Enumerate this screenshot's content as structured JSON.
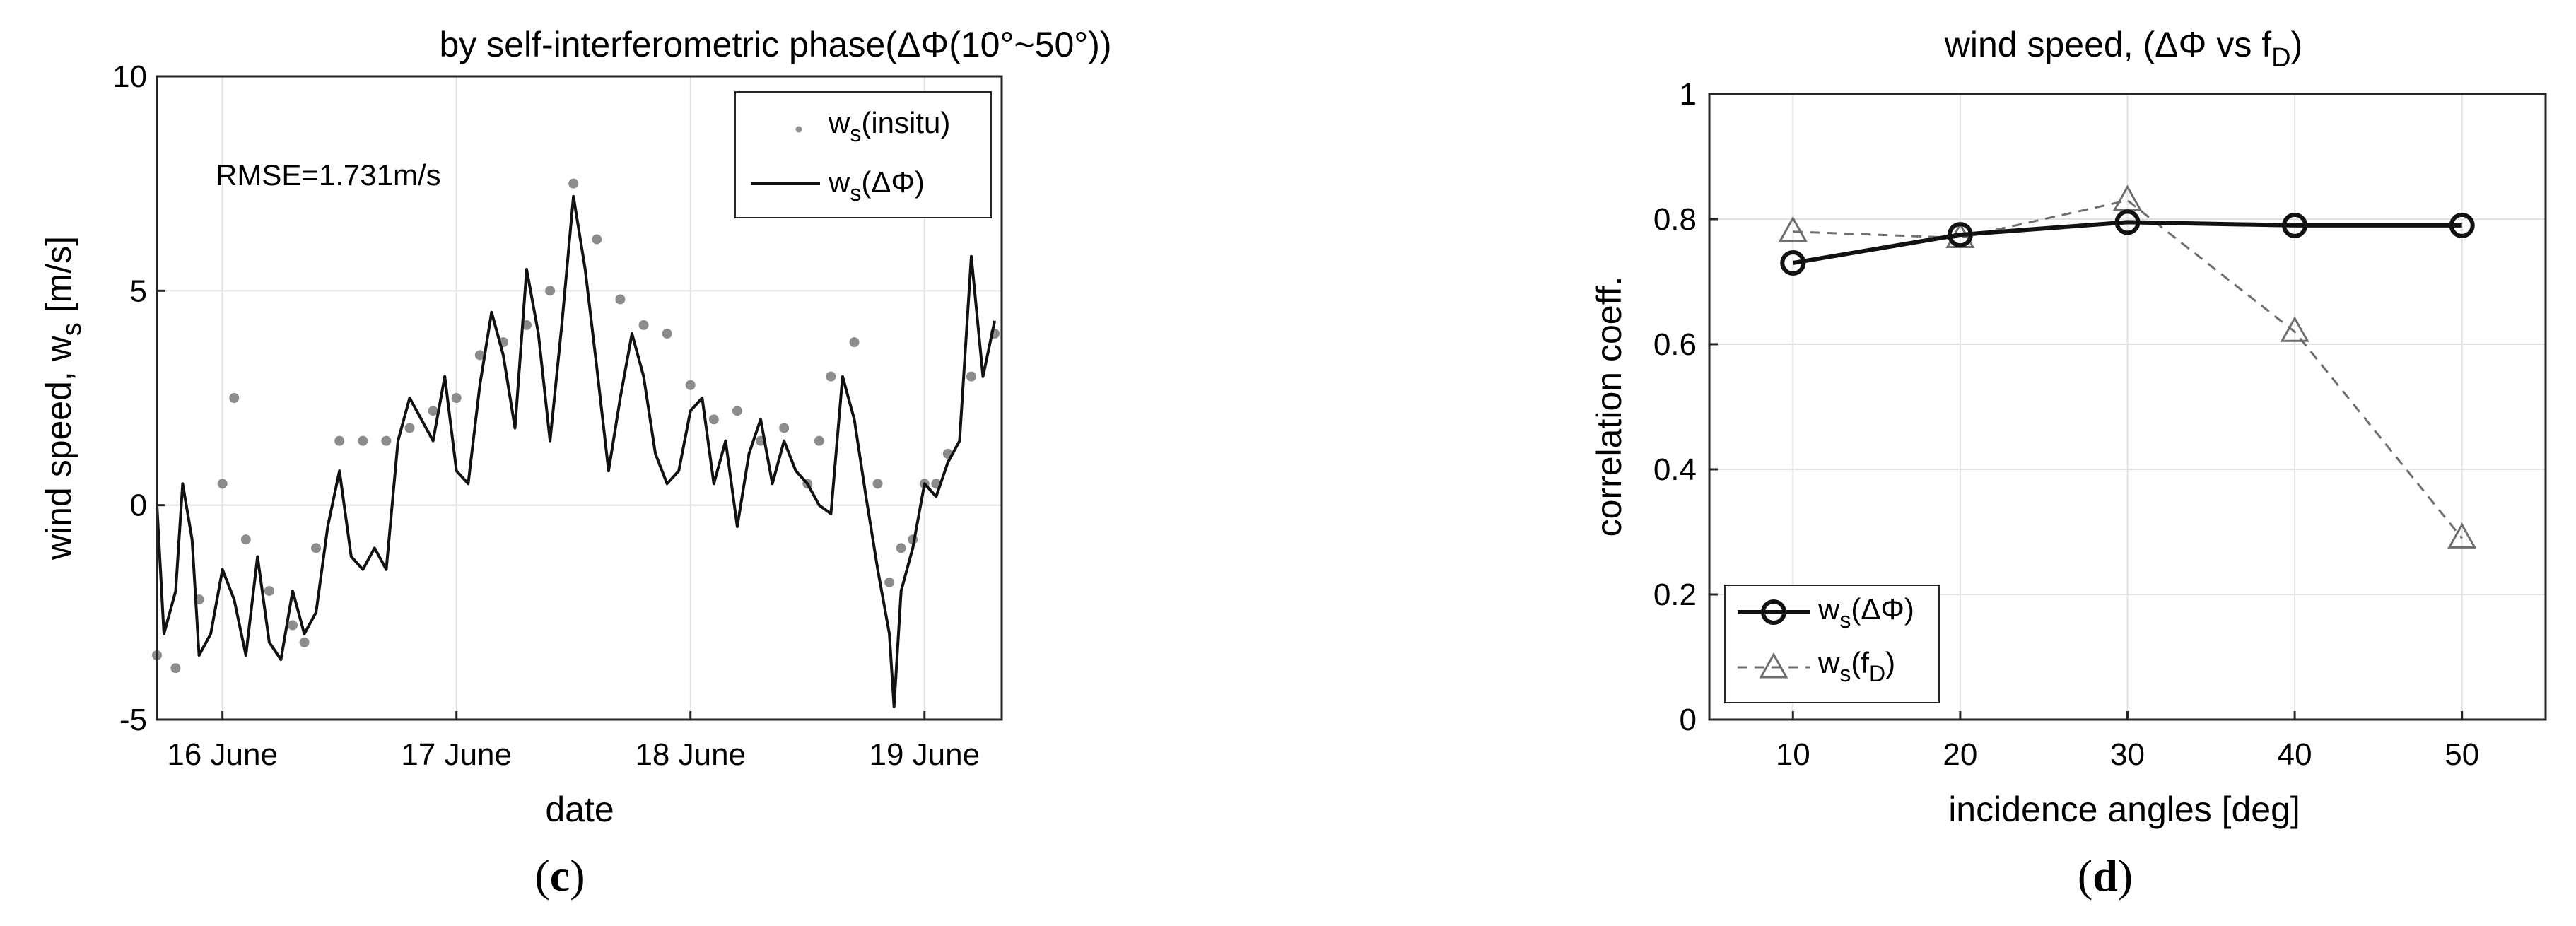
{
  "chart_data": [
    {
      "type": "scatter+line",
      "title": "by self-interferometric phase(ΔΦ(10°~50°))",
      "xlabel": "date",
      "ylabel": "wind speed, w",
      "ylabel_sub": "s",
      "ylabel_unit": " [m/s]",
      "panel_label": "c",
      "annotation": "RMSE=1.731m/s",
      "xticks": [
        "16 June",
        "17 June",
        "18 June",
        "19 June"
      ],
      "xtick_values": [
        16,
        17,
        18,
        19
      ],
      "xlim": [
        15.72,
        19.33
      ],
      "ylim": [
        -5,
        10
      ],
      "yticks": [
        "-5",
        "0",
        "5",
        "10"
      ],
      "ytick_values": [
        -5,
        0,
        5,
        10
      ],
      "grid": true,
      "legend": "top-right",
      "legend_entries": [
        {
          "name": "w",
          "sub": "s",
          "suffix": "(insitu)",
          "style": "gray dots"
        },
        {
          "name": "w",
          "sub": "s",
          "suffix": "(ΔΦ)",
          "style": "black line"
        }
      ],
      "series": [
        {
          "name": "ws(insitu)",
          "style": "dots",
          "color": "#8c8c8c",
          "x": [
            15.72,
            15.8,
            15.9,
            16.0,
            16.05,
            16.1,
            16.2,
            16.3,
            16.35,
            16.4,
            16.5,
            16.6,
            16.7,
            16.8,
            16.9,
            17.0,
            17.1,
            17.2,
            17.3,
            17.4,
            17.5,
            17.6,
            17.7,
            17.8,
            17.9,
            18.0,
            18.1,
            18.2,
            18.3,
            18.4,
            18.5,
            18.55,
            18.6,
            18.7,
            18.8,
            18.85,
            18.9,
            18.95,
            19.0,
            19.05,
            19.1,
            19.2,
            19.3
          ],
          "y": [
            -3.5,
            -3.8,
            -2.2,
            0.5,
            2.5,
            -0.8,
            -2.0,
            -2.8,
            -3.2,
            -1.0,
            1.5,
            1.5,
            1.5,
            1.8,
            2.2,
            2.5,
            3.5,
            3.8,
            4.2,
            5.0,
            7.5,
            6.2,
            4.8,
            4.2,
            4.0,
            2.8,
            2.0,
            2.2,
            1.5,
            1.8,
            0.5,
            1.5,
            3.0,
            3.8,
            0.5,
            -1.8,
            -1.0,
            -0.8,
            0.5,
            0.5,
            1.2,
            3.0,
            4.0
          ]
        },
        {
          "name": "ws(ΔΦ)",
          "style": "line",
          "color": "#111111",
          "x": [
            15.72,
            15.75,
            15.8,
            15.83,
            15.87,
            15.9,
            15.95,
            16.0,
            16.05,
            16.1,
            16.15,
            16.2,
            16.25,
            16.3,
            16.35,
            16.4,
            16.45,
            16.5,
            16.55,
            16.6,
            16.65,
            16.7,
            16.75,
            16.8,
            16.85,
            16.9,
            16.95,
            17.0,
            17.05,
            17.1,
            17.15,
            17.2,
            17.25,
            17.3,
            17.35,
            17.4,
            17.45,
            17.5,
            17.55,
            17.6,
            17.65,
            17.7,
            17.75,
            17.8,
            17.85,
            17.9,
            17.95,
            18.0,
            18.05,
            18.1,
            18.15,
            18.2,
            18.25,
            18.3,
            18.35,
            18.4,
            18.45,
            18.5,
            18.55,
            18.6,
            18.65,
            18.7,
            18.75,
            18.8,
            18.85,
            18.87,
            18.9,
            18.95,
            19.0,
            19.05,
            19.1,
            19.15,
            19.2,
            19.25,
            19.3
          ],
          "y": [
            0.0,
            -3.0,
            -2.0,
            0.5,
            -0.8,
            -3.5,
            -3.0,
            -1.5,
            -2.2,
            -3.5,
            -1.2,
            -3.2,
            -3.6,
            -2.0,
            -3.0,
            -2.5,
            -0.5,
            0.8,
            -1.2,
            -1.5,
            -1.0,
            -1.5,
            1.5,
            2.5,
            2.0,
            1.5,
            3.0,
            0.8,
            0.5,
            2.8,
            4.5,
            3.5,
            1.8,
            5.5,
            4.0,
            1.5,
            4.2,
            7.2,
            5.5,
            3.2,
            0.8,
            2.5,
            4.0,
            3.0,
            1.2,
            0.5,
            0.8,
            2.2,
            2.5,
            0.5,
            1.5,
            -0.5,
            1.2,
            2.0,
            0.5,
            1.5,
            0.8,
            0.5,
            0.0,
            -0.2,
            3.0,
            2.0,
            0.2,
            -1.5,
            -3.0,
            -4.7,
            -2.0,
            -1.0,
            0.5,
            0.2,
            1.0,
            1.5,
            5.8,
            3.0,
            4.3
          ]
        }
      ]
    },
    {
      "type": "line",
      "title": "wind speed, (ΔΦ vs f",
      "title_sub": "D",
      "title_end": ")",
      "xlabel": "incidence angles [deg]",
      "ylabel": "correlation coeff.",
      "panel_label": "d",
      "xlim": [
        5,
        55
      ],
      "ylim": [
        0,
        1
      ],
      "xticks": [
        "10",
        "20",
        "30",
        "40",
        "50"
      ],
      "xtick_values": [
        10,
        20,
        30,
        40,
        50
      ],
      "yticks": [
        "0",
        "0.2",
        "0.4",
        "0.6",
        "0.8",
        "1"
      ],
      "ytick_values": [
        0,
        0.2,
        0.4,
        0.6,
        0.8,
        1
      ],
      "grid": true,
      "legend": "bottom-left",
      "legend_entries": [
        {
          "name": "w",
          "sub": "s",
          "suffix": "(ΔΦ)",
          "style": "black solid circles"
        },
        {
          "name": "w",
          "sub": "s",
          "suffix": "(f",
          "sub2": "D",
          "suffix2": ")",
          "style": "gray dashed triangles"
        }
      ],
      "series": [
        {
          "name": "ws(ΔΦ)",
          "color": "#111111",
          "marker": "circle",
          "x": [
            10,
            20,
            30,
            40,
            50
          ],
          "values": [
            0.73,
            0.775,
            0.795,
            0.79,
            0.79
          ]
        },
        {
          "name": "ws(fD)",
          "color": "#6e6e6e",
          "marker": "triangle",
          "x": [
            10,
            20,
            30,
            40,
            50
          ],
          "values": [
            0.78,
            0.77,
            0.83,
            0.62,
            0.29
          ]
        }
      ]
    }
  ]
}
